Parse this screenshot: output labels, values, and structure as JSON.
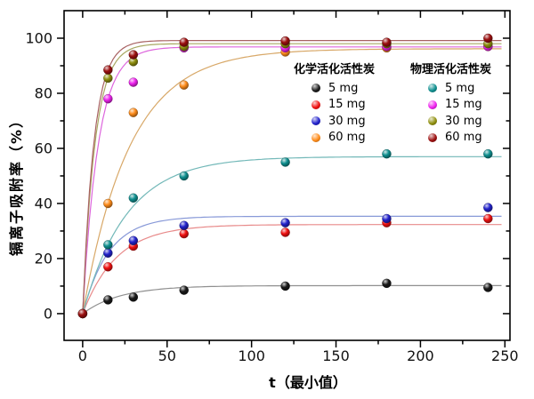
{
  "figure": {
    "background": "#ffffff"
  },
  "chart_data": {
    "type": "scatter",
    "title": "",
    "xlabel": "t（最小值）",
    "ylabel": "镉离子吸附率（%）",
    "xlim": [
      -11,
      253
    ],
    "ylim": [
      -9.7,
      110
    ],
    "xticks": [
      0,
      50,
      100,
      150,
      200,
      250
    ],
    "xticks_minor": [
      25,
      75,
      125,
      175,
      225
    ],
    "yticks": [
      0,
      20,
      40,
      60,
      80,
      100
    ],
    "yticks_minor": [
      10,
      30,
      50,
      70,
      90
    ],
    "grid": false,
    "x": [
      0,
      15,
      30,
      60,
      120,
      180,
      240
    ],
    "legend": {
      "position": "inside-top-center",
      "groups": [
        {
          "title": "化学活化活性炭",
          "items": [
            "5 mg",
            "15 mg",
            "30 mg",
            "60 mg"
          ]
        },
        {
          "title": "物理活化活性炭",
          "items": [
            "5 mg",
            "15 mg",
            "30 mg",
            "60 mg"
          ]
        }
      ]
    },
    "series": [
      {
        "name": "化学活化活性炭 5 mg",
        "color": "#1a1a1a",
        "line_color": "#8f8f8f",
        "values": [
          0,
          5,
          6,
          8.5,
          10,
          11,
          9.5
        ]
      },
      {
        "name": "化学活化活性炭 15 mg",
        "color": "#f01010",
        "line_color": "#e88a8a",
        "values": [
          0,
          17,
          24.5,
          29,
          29.5,
          33,
          34.5
        ]
      },
      {
        "name": "化学活化活性炭 30 mg",
        "color": "#2222cc",
        "line_color": "#8899d8",
        "values": [
          0,
          22,
          26.5,
          32,
          33,
          34.5,
          38.5
        ]
      },
      {
        "name": "化学活化活性炭 60 mg",
        "color": "#ff8c1a",
        "line_color": "#d8a868",
        "values": [
          0,
          40,
          73,
          83,
          95,
          96.5,
          97
        ]
      },
      {
        "name": "物理活化活性炭 5 mg",
        "color": "#0e8f8f",
        "line_color": "#72b8b8",
        "values": [
          0,
          25,
          42,
          50,
          55,
          58,
          58
        ]
      },
      {
        "name": "物理活化活性炭 15 mg",
        "color": "#ee22ee",
        "line_color": "#dd66dd",
        "values": [
          0,
          78,
          84,
          96.5,
          96.5,
          97,
          97
        ]
      },
      {
        "name": "物理活化活性炭 30 mg",
        "color": "#8f8f0e",
        "line_color": "#a8a862",
        "values": [
          0,
          85.5,
          91.5,
          97,
          98,
          98,
          98
        ]
      },
      {
        "name": "物理活化活性炭 60 mg",
        "color": "#9c0f0f",
        "line_color": "#a86262",
        "values": [
          0,
          88.5,
          94,
          98.5,
          99,
          98.5,
          100
        ]
      }
    ]
  }
}
